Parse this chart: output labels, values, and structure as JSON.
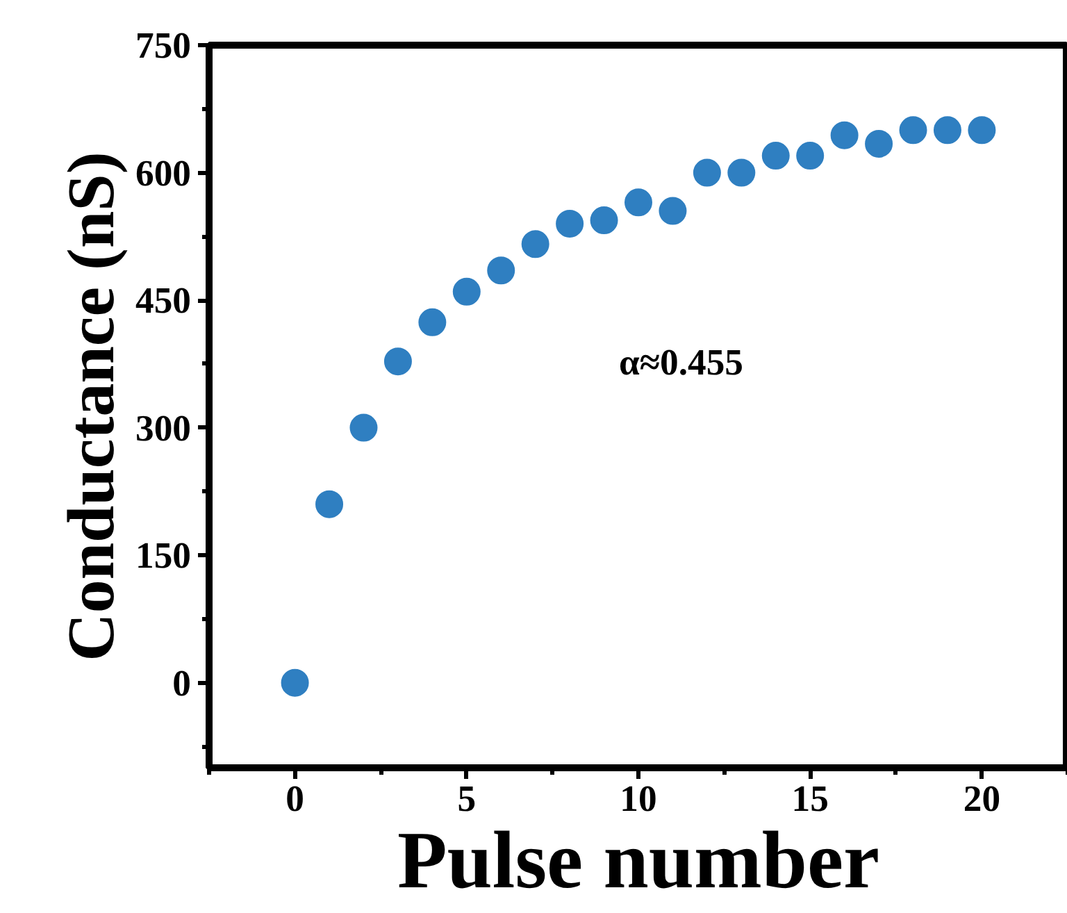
{
  "chart_data": {
    "type": "scatter",
    "xlabel": "Pulse number",
    "ylabel": "Conductance (nS)",
    "x": [
      0,
      1,
      2,
      3,
      4,
      5,
      6,
      7,
      8,
      9,
      10,
      11,
      12,
      13,
      14,
      15,
      16,
      17,
      18,
      19,
      20
    ],
    "series": [
      {
        "color": "#2f7fc1",
        "values": [
          0,
          210,
          300,
          378,
          424,
          460,
          485,
          516,
          540,
          544,
          565,
          555,
          600,
          600,
          620,
          620,
          644,
          634,
          650,
          650,
          650
        ]
      }
    ],
    "xlim": [
      -2.5,
      22.5
    ],
    "ylim": [
      -100,
      750
    ],
    "xticks": [
      0,
      5,
      10,
      15,
      20
    ],
    "yticks": [
      0,
      150,
      300,
      450,
      600,
      750
    ],
    "marker": "circle",
    "grid": false,
    "annotations": [
      "α≈0.455"
    ]
  }
}
